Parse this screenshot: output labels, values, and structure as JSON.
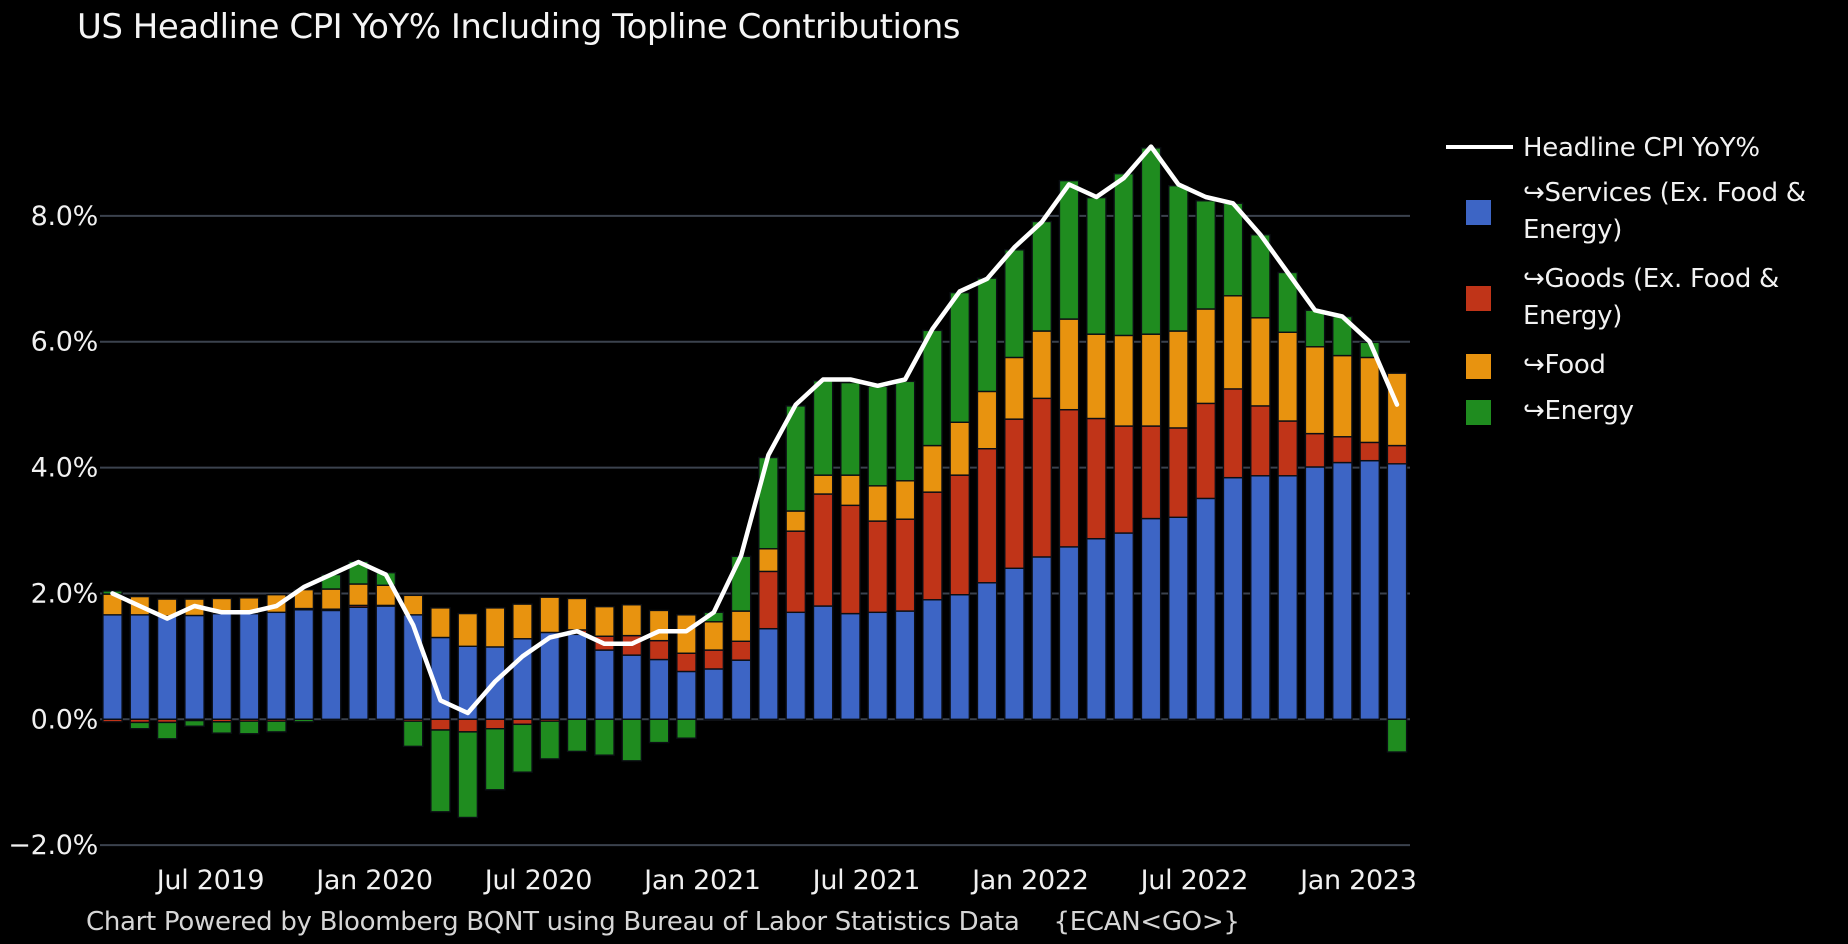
{
  "title": "US Headline CPI YoY% Including Topline Contributions",
  "footer": {
    "text": "Chart Powered by Bloomberg BQNT using Bureau of Labor Statistics Data",
    "code": "{ECAN<GO>}"
  },
  "legend": {
    "line_label": "Headline CPI YoY%",
    "line_color": "#ffffff",
    "items": [
      {
        "label": "↪Services (Ex. Food & Energy)",
        "color": "#3d65c5"
      },
      {
        "label": "↪Goods (Ex. Food & Energy)",
        "color": "#c03418"
      },
      {
        "label": "↪Food",
        "color": "#e8930f"
      },
      {
        "label": "↪Energy",
        "color": "#1f8c1f"
      }
    ]
  },
  "chart_data": {
    "type": "bar",
    "subtype": "stacked-bars-with-line-overlay",
    "title": "US Headline CPI YoY% Including Topline Contributions",
    "xlabel": "",
    "ylabel": "",
    "ylim": [
      -2.4,
      9.6
    ],
    "grid": "horizontal",
    "legend_position": "right",
    "background": "#000000",
    "gridline_color": "#3b424e",
    "text_color": "#f0f0f0",
    "categories": [
      "Apr 2019",
      "May 2019",
      "Jun 2019",
      "Jul 2019",
      "Aug 2019",
      "Sep 2019",
      "Oct 2019",
      "Nov 2019",
      "Dec 2019",
      "Jan 2020",
      "Feb 2020",
      "Mar 2020",
      "Apr 2020",
      "May 2020",
      "Jun 2020",
      "Jul 2020",
      "Aug 2020",
      "Sep 2020",
      "Oct 2020",
      "Nov 2020",
      "Dec 2020",
      "Jan 2021",
      "Feb 2021",
      "Mar 2021",
      "Apr 2021",
      "May 2021",
      "Jun 2021",
      "Jul 2021",
      "Aug 2021",
      "Sep 2021",
      "Oct 2021",
      "Nov 2021",
      "Dec 2021",
      "Jan 2022",
      "Feb 2022",
      "Mar 2022",
      "Apr 2022",
      "May 2022",
      "Jun 2022",
      "Jul 2022",
      "Aug 2022",
      "Sep 2022",
      "Oct 2022",
      "Nov 2022",
      "Dec 2022",
      "Jan 2023",
      "Feb 2023",
      "Mar 2023"
    ],
    "series": [
      {
        "name": "↪Services (Ex. Food & Energy)",
        "color": "#3d65c5",
        "values": [
          1.66,
          1.66,
          1.64,
          1.65,
          1.68,
          1.68,
          1.7,
          1.74,
          1.73,
          1.78,
          1.8,
          1.66,
          1.3,
          1.16,
          1.15,
          1.28,
          1.38,
          1.35,
          1.1,
          1.02,
          0.95,
          0.76,
          0.8,
          0.94,
          1.44,
          1.7,
          1.8,
          1.68,
          1.7,
          1.72,
          1.9,
          1.98,
          2.17,
          2.4,
          2.58,
          2.74,
          2.87,
          2.96,
          3.19,
          3.21,
          3.51,
          3.84,
          3.87,
          3.87,
          4.01,
          4.08,
          4.11,
          4.06
        ]
      },
      {
        "name": "↪Goods (Ex. Food & Energy)",
        "color": "#c03418",
        "values": [
          -0.04,
          -0.05,
          -0.05,
          -0.02,
          -0.04,
          -0.03,
          -0.03,
          0.02,
          0.02,
          0.03,
          0.01,
          -0.03,
          -0.17,
          -0.2,
          -0.15,
          -0.08,
          -0.03,
          0.07,
          0.22,
          0.31,
          0.3,
          0.29,
          0.3,
          0.3,
          0.91,
          1.29,
          1.78,
          1.72,
          1.45,
          1.46,
          1.71,
          1.9,
          2.13,
          2.37,
          2.52,
          2.18,
          1.91,
          1.7,
          1.47,
          1.42,
          1.51,
          1.41,
          1.11,
          0.87,
          0.53,
          0.41,
          0.29,
          0.29
        ]
      },
      {
        "name": "↪Food",
        "color": "#e8930f",
        "values": [
          0.33,
          0.29,
          0.27,
          0.26,
          0.24,
          0.25,
          0.28,
          0.3,
          0.32,
          0.34,
          0.32,
          0.31,
          0.47,
          0.52,
          0.62,
          0.55,
          0.56,
          0.5,
          0.47,
          0.49,
          0.48,
          0.61,
          0.45,
          0.48,
          0.36,
          0.32,
          0.3,
          0.48,
          0.56,
          0.61,
          0.74,
          0.84,
          0.91,
          0.98,
          1.07,
          1.44,
          1.34,
          1.44,
          1.46,
          1.54,
          1.5,
          1.48,
          1.4,
          1.41,
          1.38,
          1.29,
          1.35,
          1.15
        ]
      },
      {
        "name": "↪Energy",
        "color": "#1f8c1f",
        "values": [
          0.05,
          -0.1,
          -0.26,
          -0.09,
          -0.18,
          -0.2,
          -0.17,
          -0.04,
          0.23,
          0.36,
          0.2,
          -0.4,
          -1.3,
          -1.36,
          -0.97,
          -0.76,
          -0.6,
          -0.51,
          -0.57,
          -0.66,
          -0.37,
          -0.3,
          0.15,
          0.87,
          1.45,
          1.67,
          1.5,
          1.47,
          1.58,
          1.58,
          1.83,
          2.06,
          1.8,
          1.71,
          1.74,
          2.2,
          2.17,
          2.57,
          2.96,
          2.31,
          1.72,
          1.47,
          1.32,
          0.95,
          0.58,
          0.62,
          0.24,
          -0.52
        ]
      }
    ],
    "line_series": {
      "name": "Headline CPI YoY%",
      "color": "#ffffff",
      "values": [
        2.0,
        1.8,
        1.6,
        1.8,
        1.7,
        1.7,
        1.8,
        2.1,
        2.3,
        2.5,
        2.3,
        1.5,
        0.3,
        0.1,
        0.6,
        1.0,
        1.3,
        1.4,
        1.2,
        1.2,
        1.4,
        1.4,
        1.7,
        2.6,
        4.2,
        5.0,
        5.4,
        5.4,
        5.3,
        5.4,
        6.2,
        6.8,
        7.0,
        7.5,
        7.9,
        8.5,
        8.3,
        8.6,
        9.1,
        8.5,
        8.3,
        8.2,
        7.7,
        7.1,
        6.5,
        6.4,
        6.0,
        5.0
      ]
    },
    "y_ticks": [
      {
        "label": "8.0%",
        "value": 8
      },
      {
        "label": "6.0%",
        "value": 6
      },
      {
        "label": "4.0%",
        "value": 4
      },
      {
        "label": "2.0%",
        "value": 2
      },
      {
        "label": "0.0%",
        "value": 0
      },
      {
        "label": "−2.0%",
        "value": -2
      }
    ],
    "x_ticks": [
      {
        "label": "Jul 2019",
        "index": 3
      },
      {
        "label": "Jan 2020",
        "index": 9
      },
      {
        "label": "Jul 2020",
        "index": 15
      },
      {
        "label": "Jan 2021",
        "index": 21
      },
      {
        "label": "Jul 2021",
        "index": 27
      },
      {
        "label": "Jan 2022",
        "index": 33
      },
      {
        "label": "Jul 2022",
        "index": 39
      },
      {
        "label": "Jan 2023",
        "index": 45
      }
    ]
  }
}
